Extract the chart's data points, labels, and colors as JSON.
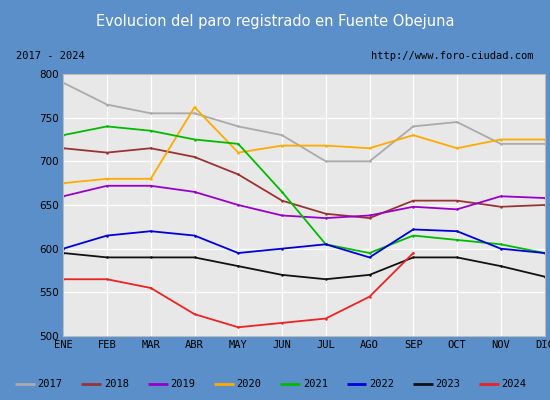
{
  "title": "Evolucion del paro registrado en Fuente Obejuna",
  "subtitle_left": "2017 - 2024",
  "subtitle_right": "http://www.foro-ciudad.com",
  "xlabel_months": [
    "ENE",
    "FEB",
    "MAR",
    "ABR",
    "MAY",
    "JUN",
    "JUL",
    "AGO",
    "SEP",
    "OCT",
    "NOV",
    "DIC"
  ],
  "ylim": [
    500,
    800
  ],
  "yticks": [
    500,
    550,
    600,
    650,
    700,
    750,
    800
  ],
  "series": {
    "2017": {
      "color": "#aaaaaa",
      "values": [
        790,
        765,
        755,
        755,
        740,
        730,
        700,
        700,
        740,
        745,
        720,
        720
      ]
    },
    "2018": {
      "color": "#993333",
      "values": [
        715,
        710,
        715,
        705,
        685,
        655,
        640,
        635,
        655,
        655,
        648,
        650
      ]
    },
    "2019": {
      "color": "#9900cc",
      "values": [
        660,
        672,
        672,
        665,
        650,
        638,
        635,
        638,
        648,
        645,
        660,
        658
      ]
    },
    "2020": {
      "color": "#ffaa00",
      "values": [
        675,
        680,
        680,
        762,
        710,
        718,
        718,
        715,
        730,
        715,
        725,
        725
      ]
    },
    "2021": {
      "color": "#00bb00",
      "values": [
        730,
        740,
        735,
        725,
        720,
        665,
        605,
        595,
        615,
        610,
        605,
        595
      ]
    },
    "2022": {
      "color": "#0000dd",
      "values": [
        600,
        615,
        620,
        615,
        595,
        600,
        605,
        590,
        622,
        620,
        600,
        595
      ]
    },
    "2023": {
      "color": "#111111",
      "values": [
        595,
        590,
        590,
        590,
        580,
        570,
        565,
        570,
        590,
        590,
        580,
        568
      ]
    },
    "2024": {
      "color": "#ee2222",
      "values": [
        565,
        565,
        555,
        525,
        510,
        515,
        520,
        545,
        595,
        null,
        null,
        null
      ]
    }
  },
  "title_bg_color": "#5b8fc9",
  "title_text_color": "#ffffff",
  "subtitle_bg_color": "#ffffff",
  "plot_bg_color": "#e8e8e8",
  "border_color": "#5b8fc9",
  "grid_color": "#ffffff",
  "title_fontsize": 10.5,
  "tick_fontsize": 7.5,
  "legend_fontsize": 7.5
}
